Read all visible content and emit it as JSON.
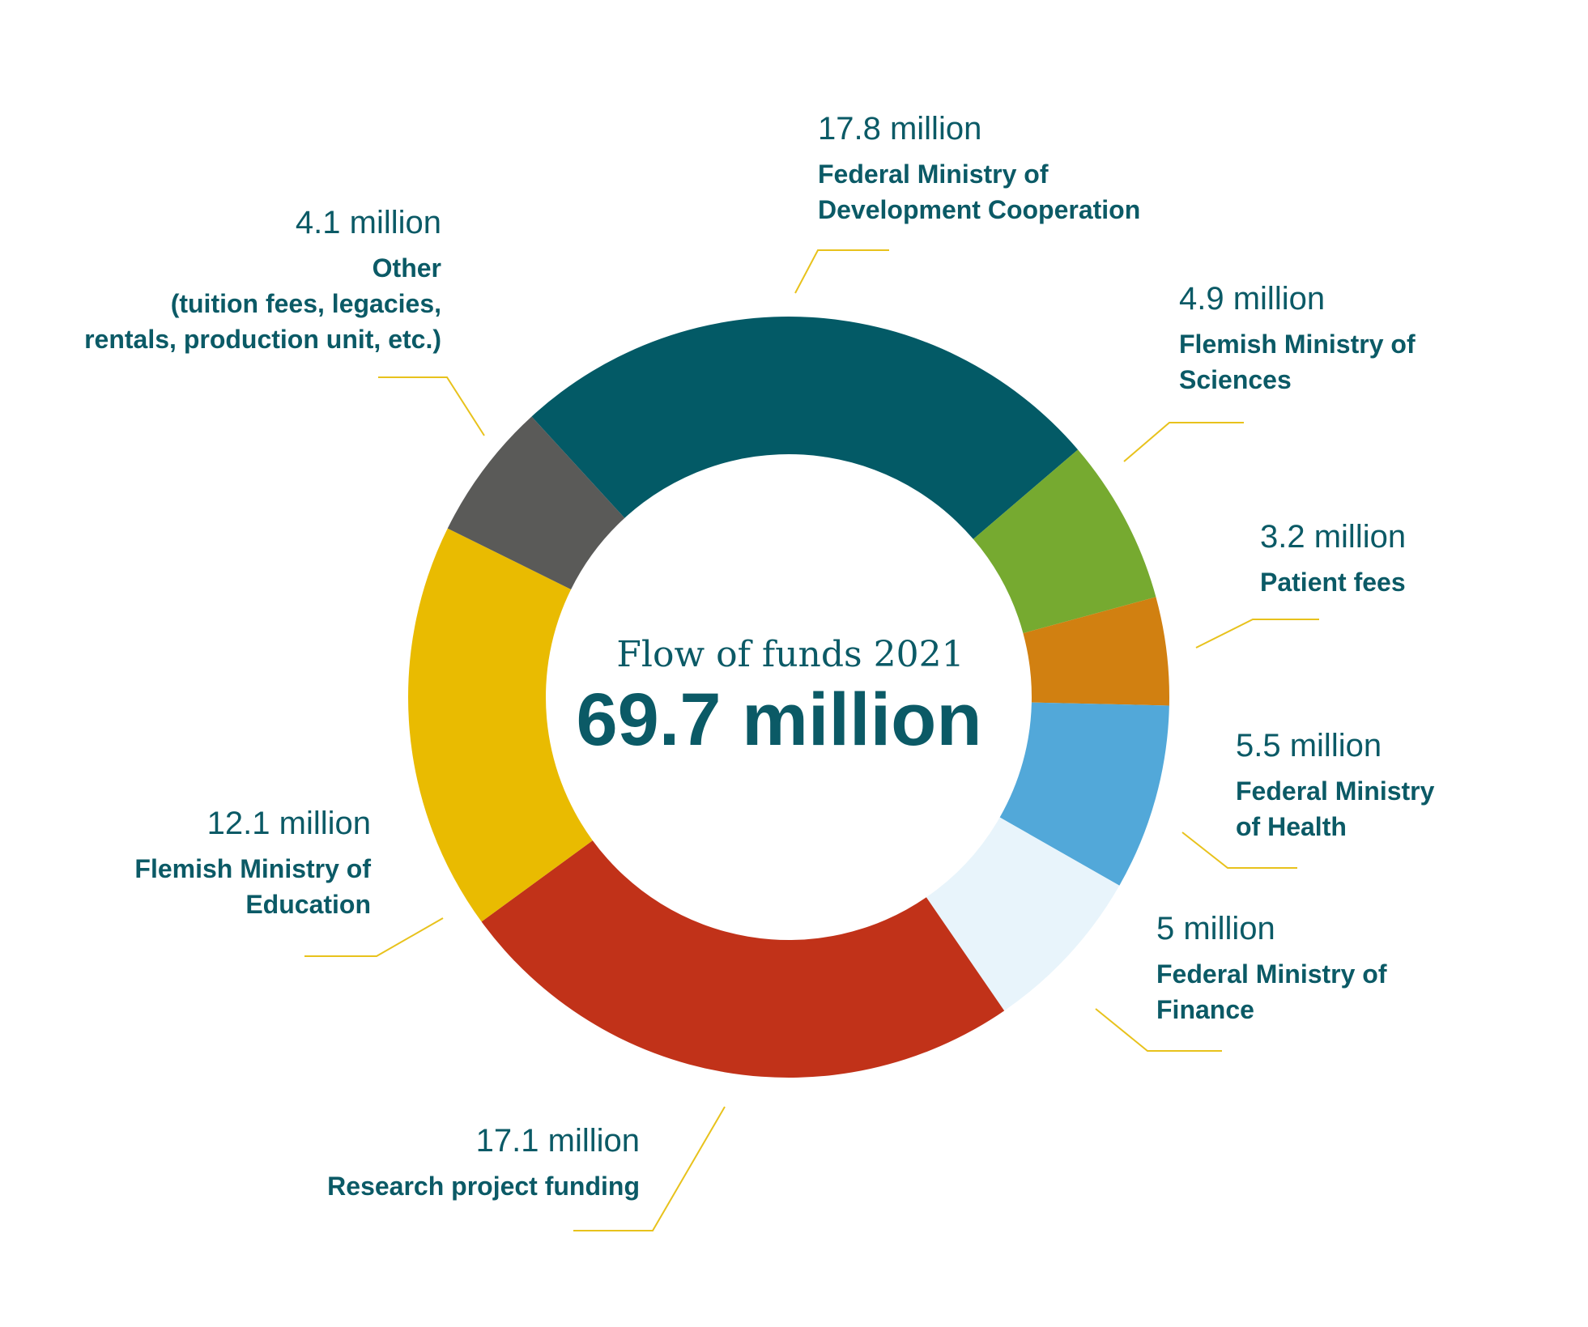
{
  "chart_data": {
    "type": "pie",
    "title": "Flow of funds 2021",
    "total": "69.7 million",
    "slices": [
      {
        "name": "Federal Ministry of Development Cooperation",
        "label_lines": [
          "Federal Ministry of",
          "Development Cooperation"
        ],
        "value": 17.8,
        "amount": "17.8 million",
        "color": "#035a66"
      },
      {
        "name": "Flemish Ministry of Sciences",
        "label_lines": [
          "Flemish Ministry of",
          "Sciences"
        ],
        "value": 4.9,
        "amount": "4.9 million",
        "color": "#76aa30"
      },
      {
        "name": "Patient fees",
        "label_lines": [
          "Patient fees"
        ],
        "value": 3.2,
        "amount": "3.2 million",
        "color": "#d18011"
      },
      {
        "name": "Federal Ministry of Health",
        "label_lines": [
          "Federal Ministry",
          "of Health"
        ],
        "value": 5.5,
        "amount": "5.5 million",
        "color": "#52a8d9"
      },
      {
        "name": "Federal Ministry of Finance",
        "label_lines": [
          "Federal Ministry of",
          "Finance"
        ],
        "value": 5,
        "amount": "5 million",
        "color": "#e8f4fb"
      },
      {
        "name": "Research project funding",
        "label_lines": [
          "Research project funding"
        ],
        "value": 17.1,
        "amount": "17.1 million",
        "color": "#c13219"
      },
      {
        "name": "Flemish Ministry of Education",
        "label_lines": [
          "Flemish Ministry of",
          "Education"
        ],
        "value": 12.1,
        "amount": "12.1 million",
        "color": "#e9bb01"
      },
      {
        "name": "Other (tuition fees, legacies, rentals, production unit, etc.)",
        "label_lines": [
          "Other",
          "(tuition fees, legacies,",
          "rentals, production unit, etc.)"
        ],
        "value": 4.1,
        "amount": "4.1 million",
        "color": "#5a5a58"
      }
    ]
  }
}
